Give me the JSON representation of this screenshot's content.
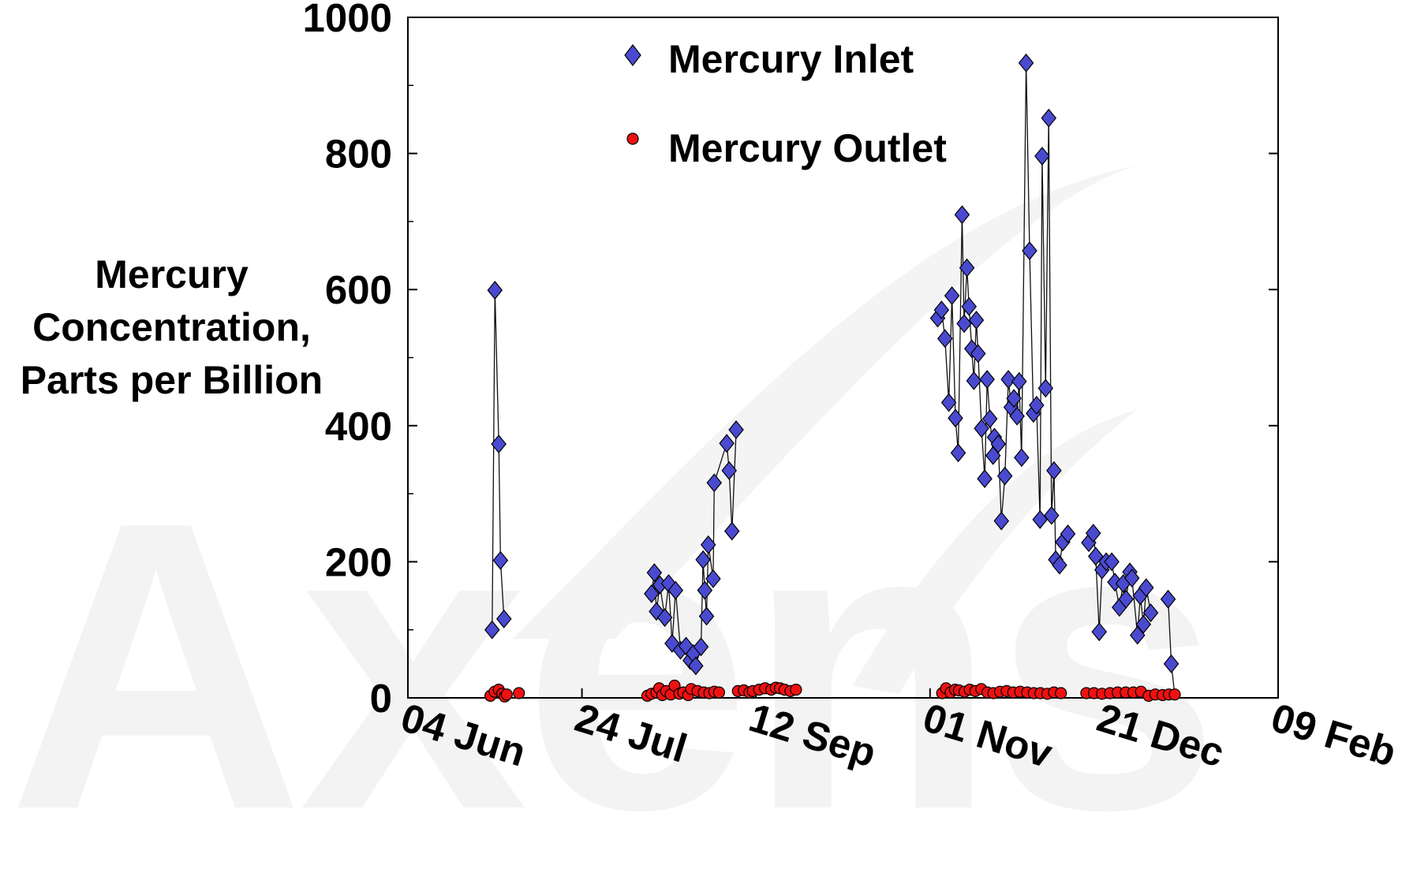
{
  "watermark": {
    "text": "Axens"
  },
  "chart_data": {
    "type": "scatter",
    "title": "",
    "ylabel_lines": [
      "Mercury",
      "Concentration,",
      "Parts per Billion"
    ],
    "xlabel": "",
    "ylim": [
      0,
      1000
    ],
    "y_ticks": [
      0,
      200,
      400,
      600,
      800,
      1000
    ],
    "y_tick_labels": [
      "0",
      "200",
      "400",
      "600",
      "800",
      "1000"
    ],
    "x_tick_labels": [
      "04 Jun",
      "24 Jul",
      "12 Sep",
      "01 Nov",
      "21 Dec",
      "09 Feb"
    ],
    "x_tick_days": [
      0,
      50,
      100,
      150,
      200,
      250
    ],
    "xlim_days": [
      0,
      250
    ],
    "legend_position": "top-center",
    "grid": false,
    "series": [
      {
        "name": "Mercury Inlet",
        "marker": "diamond",
        "color": "#4a4ad0",
        "connected": true,
        "segments": [
          {
            "x": [
              24.2,
              25,
              26.1,
              26.6,
              27.6
            ],
            "y": [
              100,
              599,
              373,
              202,
              116
            ]
          },
          {
            "x": [
              70,
              70.8,
              71.4,
              72.4,
              73.8,
              74.9,
              75.9,
              76.9,
              78.3,
              79.9,
              81.1,
              82,
              82.7,
              84.2,
              84.8,
              85.3,
              85.8,
              86.3,
              87.7,
              88,
              91.6,
              92.3,
              93.1,
              94.3
            ],
            "y": [
              153,
              184,
              127,
              166,
              118,
              168,
              80,
              158,
              70,
              76,
              55,
              65,
              47,
              75,
              203,
              158,
              120,
              225,
              175,
              316,
              374,
              334,
              245,
              394
            ]
          },
          {
            "x": [
              152.2,
              153.3,
              154.3,
              155.4,
              156.3,
              157.3,
              158.1,
              159.2,
              159.8,
              160.6,
              161.2,
              162,
              162.6,
              163.3,
              163.8,
              164.8,
              165.7,
              166.4,
              167.2,
              168.1,
              168.5,
              169.6,
              170.5,
              171.5,
              172.5,
              173.3,
              174.1,
              175,
              175.6,
              176.3,
              177.6,
              178.6,
              179.7,
              180.6,
              181.6,
              182.2,
              183.2,
              184.1,
              184.9,
              185.6,
              186.1,
              187.2,
              188.1,
              189.6
            ],
            "y": [
              558,
              570,
              528,
              434,
              591,
              411,
              360,
              710,
              550,
              632,
              575,
              513,
              466,
              555,
              506,
              396,
              322,
              468,
              410,
              356,
              383,
              373,
              260,
              326,
              468,
              427,
              440,
              414,
              465,
              353,
              933,
              657,
              418,
              430,
              262,
              796,
              455,
              852,
              268,
              334,
              203,
              195,
              229,
              241
            ]
          },
          {
            "x": [
              195.6,
              196.9,
              197.6,
              198.6,
              199.4,
              200.6,
              202.2,
              203.1,
              204.4,
              205.5,
              206.3,
              207.4,
              208,
              209.6,
              210.4,
              211.3,
              212.1,
              213.4
            ],
            "y": [
              228,
              242,
              208,
              97,
              188,
              200,
              200,
              170,
              133,
              168,
              145,
              185,
              176,
              92,
              150,
              108,
              162,
              125
            ]
          },
          {
            "x": [
              218.4,
              219.3,
              220.4,
              221.4,
              222.1,
              223.1
            ],
            "y": [
              145,
              50,
              0,
              0,
              0,
              0
            ]
          }
        ]
      },
      {
        "name": "Mercury Outlet",
        "marker": "circle",
        "color": "#ee1111",
        "connected": false,
        "x": [
          23.7,
          24.9,
          26.1,
          27.1,
          27.8,
          28.4,
          31.9,
          68.8,
          70,
          71.4,
          72.2,
          73.1,
          74.2,
          75.5,
          76.6,
          78,
          79.1,
          80.5,
          81.4,
          83.2,
          85,
          86.6,
          88,
          89.4,
          94.8,
          96.5,
          98.1,
          99.1,
          100.9,
          102.6,
          104.4,
          105.7,
          106.9,
          108.2,
          109.9,
          111.5,
          153.5,
          154.6,
          155.9,
          157.2,
          158.3,
          159.9,
          161.4,
          163,
          164.7,
          166.5,
          168.2,
          170.1,
          172,
          173.9,
          175.9,
          177.9,
          179.8,
          181.7,
          183.7,
          185.6,
          187.6,
          194.9,
          197.1,
          199.4,
          201.7,
          203.9,
          206.2,
          208.4,
          210.6,
          212.8,
          214.7,
          216.8,
          218.6,
          220.3
        ],
        "y": [
          3,
          9,
          12,
          6,
          2,
          5,
          7,
          3,
          6,
          8,
          14,
          4,
          10,
          5,
          18,
          6,
          8,
          4,
          13,
          10,
          8,
          7,
          9,
          8,
          10,
          11,
          8,
          10,
          12,
          14,
          12,
          15,
          14,
          12,
          10,
          12,
          7,
          14,
          8,
          12,
          11,
          9,
          12,
          10,
          13,
          8,
          7,
          9,
          10,
          8,
          9,
          8,
          7,
          7,
          6,
          8,
          7,
          7,
          7,
          6,
          7,
          8,
          8,
          8,
          9,
          3,
          5,
          4,
          5,
          5
        ]
      }
    ]
  }
}
